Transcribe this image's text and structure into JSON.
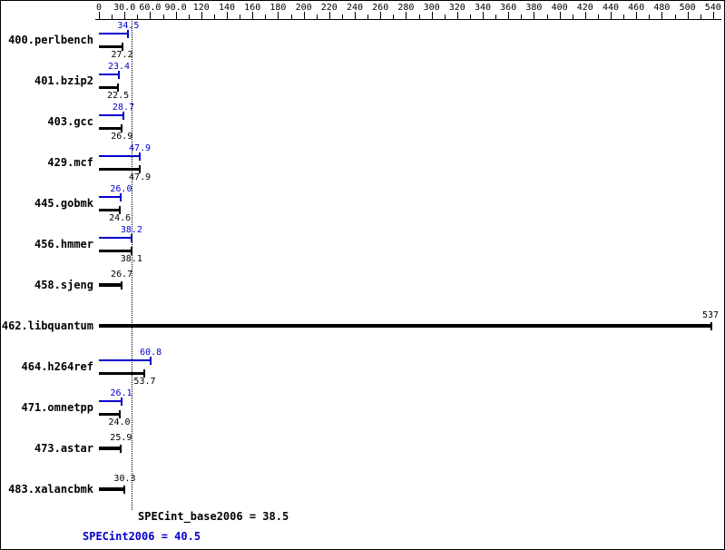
{
  "chart_data": {
    "type": "bar",
    "orientation": "horizontal",
    "title": "",
    "xlabel": "",
    "ylabel": "",
    "xlim": [
      0,
      540
    ],
    "grid": false,
    "legend": "none",
    "axis_tick_labels": [
      "0",
      "30.0",
      "60.0",
      "90.0",
      "120",
      "140",
      "160",
      "180",
      "200",
      "220",
      "240",
      "260",
      "280",
      "300",
      "320",
      "340",
      "360",
      "380",
      "400",
      "420",
      "440",
      "460",
      "480",
      "500",
      "540"
    ],
    "axis_tick_values": [
      0,
      30,
      60,
      90,
      120,
      140,
      160,
      180,
      200,
      220,
      240,
      260,
      280,
      300,
      320,
      340,
      360,
      380,
      400,
      420,
      440,
      460,
      480,
      500,
      540
    ],
    "categories": [
      "400.perlbench",
      "401.bzip2",
      "403.gcc",
      "429.mcf",
      "445.gobmk",
      "456.hmmer",
      "458.sjeng",
      "462.libquantum",
      "464.h264ref",
      "471.omnetpp",
      "473.astar",
      "483.xalancbmk"
    ],
    "series": [
      {
        "name": "SPECint2006 (peak)",
        "color": "#0000cc",
        "values": [
          34.5,
          23.4,
          28.7,
          47.9,
          26.0,
          38.2,
          null,
          null,
          60.8,
          26.1,
          null,
          null
        ],
        "labels": [
          "34.5",
          "23.4",
          "28.7",
          "47.9",
          "26.0",
          "38.2",
          null,
          null,
          "60.8",
          "26.1",
          null,
          null
        ]
      },
      {
        "name": "SPECint_base2006 (base)",
        "color": "#000000",
        "values": [
          27.2,
          22.5,
          26.9,
          47.9,
          24.6,
          38.1,
          26.7,
          537,
          53.7,
          24.0,
          25.9,
          30.3
        ],
        "labels": [
          "27.2",
          "22.5",
          "26.9",
          "47.9",
          "24.6",
          "38.1",
          "26.7",
          "537",
          "53.7",
          "24.0",
          "25.9",
          "30.3"
        ]
      }
    ],
    "reference_line_value": 38.5,
    "annotations": [
      {
        "text": "SPECint_base2006 = 38.5",
        "color": "#000000"
      },
      {
        "text": "SPECint2006 = 40.5",
        "color": "#0000cc"
      }
    ]
  }
}
